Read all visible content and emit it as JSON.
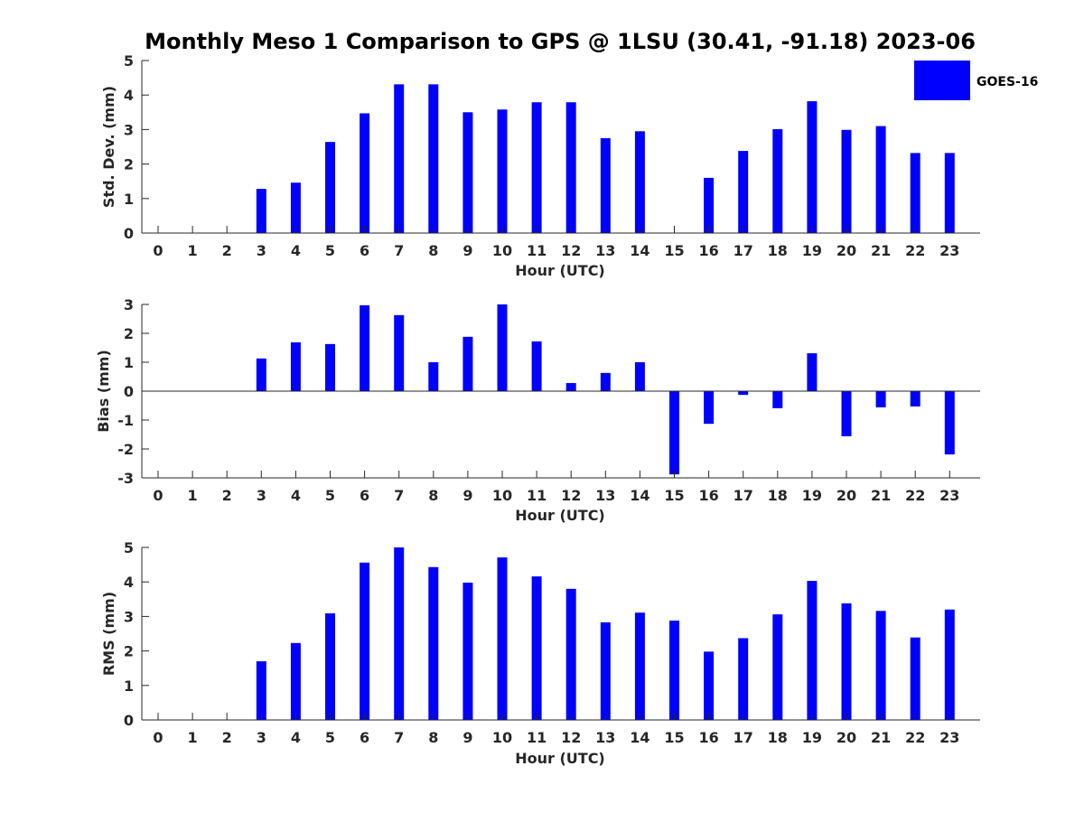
{
  "chart_data": {
    "title": "Monthly Meso 1 Comparison to GPS @ 1LSU (30.41, -91.18) 2023-06",
    "legend": {
      "label": "GOES-16",
      "color": "#0000ff",
      "position": "top-right"
    },
    "panels": [
      {
        "type": "bar",
        "ylabel": "Std. Dev. (mm)",
        "xlabel": "Hour (UTC)",
        "ylim": [
          0,
          5
        ],
        "yticks": [
          "0",
          "1",
          "2",
          "3",
          "4",
          "5"
        ],
        "categories": [
          "0",
          "1",
          "2",
          "3",
          "4",
          "5",
          "6",
          "7",
          "8",
          "9",
          "10",
          "11",
          "12",
          "13",
          "14",
          "15",
          "16",
          "17",
          "18",
          "19",
          "20",
          "21",
          "22",
          "23"
        ],
        "values": [
          null,
          null,
          null,
          1.28,
          1.46,
          2.64,
          3.47,
          4.31,
          4.31,
          3.5,
          3.58,
          3.79,
          3.79,
          2.75,
          2.95,
          null,
          1.6,
          2.38,
          3.01,
          3.82,
          2.99,
          3.1,
          2.32,
          2.32
        ]
      },
      {
        "type": "bar",
        "ylabel": "Bias (mm)",
        "xlabel": "Hour (UTC)",
        "ylim": [
          -3,
          3
        ],
        "yticks": [
          "-3",
          "-2",
          "-1",
          "0",
          "1",
          "2",
          "3"
        ],
        "categories": [
          "0",
          "1",
          "2",
          "3",
          "4",
          "5",
          "6",
          "7",
          "8",
          "9",
          "10",
          "11",
          "12",
          "13",
          "14",
          "15",
          "16",
          "17",
          "18",
          "19",
          "20",
          "21",
          "22",
          "23"
        ],
        "values": [
          null,
          null,
          null,
          1.13,
          1.69,
          1.63,
          2.97,
          2.63,
          1.0,
          1.88,
          3.0,
          1.72,
          0.28,
          0.63,
          1.0,
          -2.88,
          -1.13,
          -0.13,
          -0.59,
          1.31,
          -1.56,
          -0.56,
          -0.53,
          -2.19
        ]
      },
      {
        "type": "bar",
        "ylabel": "RMS (mm)",
        "xlabel": "Hour (UTC)",
        "ylim": [
          0,
          5
        ],
        "yticks": [
          "0",
          "1",
          "2",
          "3",
          "4",
          "5"
        ],
        "categories": [
          "0",
          "1",
          "2",
          "3",
          "4",
          "5",
          "6",
          "7",
          "8",
          "9",
          "10",
          "11",
          "12",
          "13",
          "14",
          "15",
          "16",
          "17",
          "18",
          "19",
          "20",
          "21",
          "22",
          "23"
        ],
        "values": [
          null,
          null,
          null,
          1.7,
          2.23,
          3.09,
          4.56,
          5.0,
          4.43,
          3.98,
          4.71,
          4.16,
          3.8,
          2.83,
          3.11,
          2.88,
          1.98,
          2.37,
          3.06,
          4.03,
          3.38,
          3.16,
          2.39,
          3.2
        ]
      }
    ]
  }
}
